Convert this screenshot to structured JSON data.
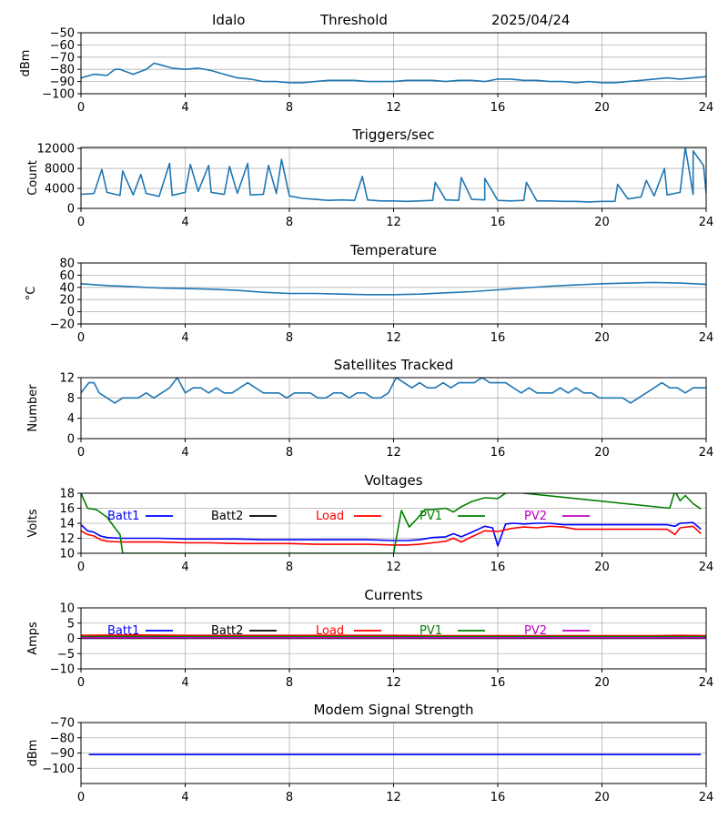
{
  "header": {
    "station": "Idalo",
    "mode": "Threshold",
    "date": "2025/04/24"
  },
  "x_ticks": [
    "0",
    "4",
    "8",
    "12",
    "16",
    "20",
    "24"
  ],
  "chart_data": [
    {
      "type": "line",
      "title": "",
      "ylabel": "dBm",
      "xlim": [
        0,
        24
      ],
      "ylim": [
        -100,
        -50
      ],
      "yticks": [
        "-50",
        "-60",
        "-70",
        "-80",
        "-90",
        "-100"
      ],
      "grid": true,
      "series": [
        {
          "color": "#1f77b4",
          "x": [
            0,
            0.5,
            1,
            1.3,
            1.5,
            2,
            2.5,
            2.8,
            3,
            3.5,
            4,
            4.5,
            5,
            5.5,
            6,
            6.5,
            7,
            7.5,
            8,
            8.5,
            9,
            9.5,
            10,
            10.5,
            11,
            11.5,
            12,
            12.5,
            13,
            13.5,
            14,
            14.5,
            15,
            15.5,
            16,
            16.5,
            17,
            17.5,
            18,
            18.5,
            19,
            19.5,
            20,
            20.5,
            21,
            21.5,
            22,
            22.5,
            23,
            23.5,
            24
          ],
          "y": [
            -87,
            -84,
            -85,
            -80,
            -80,
            -84,
            -80,
            -75,
            -76,
            -79,
            -80,
            -79,
            -81,
            -84,
            -87,
            -88,
            -90,
            -90,
            -91,
            -91,
            -90,
            -89,
            -89,
            -89,
            -90,
            -90,
            -90,
            -89,
            -89,
            -89,
            -90,
            -89,
            -89,
            -90,
            -88,
            -88,
            -89,
            -89,
            -90,
            -90,
            -91,
            -90,
            -91,
            -91,
            -90,
            -89,
            -88,
            -87,
            -88,
            -87,
            -86
          ]
        }
      ]
    },
    {
      "type": "line",
      "title": "Triggers/sec",
      "ylabel": "Count",
      "xlim": [
        0,
        24
      ],
      "ylim": [
        0,
        12200
      ],
      "yticks": [
        "0",
        "4000",
        "8000",
        "12000"
      ],
      "grid": true,
      "series": [
        {
          "color": "#1f77b4",
          "x": [
            0,
            0.5,
            1,
            1.5,
            2,
            2.5,
            3,
            3.5,
            4,
            4.5,
            5,
            5.5,
            6,
            6.5,
            7,
            7.5,
            8,
            8.5,
            9,
            9.5,
            10,
            10.5,
            11,
            11.5,
            12,
            12.5,
            13,
            13.5,
            14,
            14.5,
            15,
            15.5,
            16,
            16.5,
            17,
            17.5,
            18,
            18.5,
            19,
            19.5,
            20,
            20.5,
            21,
            21.5,
            22,
            22.5,
            23,
            23.5,
            24
          ],
          "y": [
            2800,
            3000,
            3200,
            2600,
            2700,
            3000,
            2400,
            2600,
            3200,
            3400,
            3200,
            2800,
            3000,
            2700,
            2800,
            3000,
            2500,
            2000,
            1800,
            1600,
            1700,
            1600,
            1700,
            1500,
            1500,
            1400,
            1500,
            1600,
            1700,
            1600,
            1800,
            1700,
            1600,
            1500,
            1600,
            1500,
            1500,
            1400,
            1400,
            1300,
            1400,
            1400,
            1900,
            2300,
            2500,
            2700,
            3200,
            2800,
            3000
          ],
          "spikes_x": [
            0.8,
            1.6,
            2.3,
            3.4,
            4.2,
            4.9,
            5.7,
            6.4,
            7.2,
            7.7,
            10.8,
            13.6,
            14.6,
            15.5,
            17.1,
            20.6,
            21.7,
            22.4,
            23.2,
            23.5,
            23.9
          ],
          "spikes_y": [
            7800,
            7500,
            6800,
            9000,
            8800,
            8600,
            8400,
            9000,
            8600,
            9800,
            6400,
            5200,
            6200,
            6000,
            5200,
            4800,
            5600,
            8000,
            12200,
            11500,
            8600
          ]
        }
      ]
    },
    {
      "type": "line",
      "title": "Temperature",
      "ylabel": "°C",
      "xlim": [
        0,
        24
      ],
      "ylim": [
        -20,
        80
      ],
      "yticks": [
        "80",
        "60",
        "40",
        "20",
        "0",
        "-20"
      ],
      "grid": true,
      "series": [
        {
          "color": "#1f77b4",
          "x": [
            0,
            1,
            2,
            3,
            4,
            5,
            6,
            7,
            8,
            9,
            10,
            11,
            12,
            13,
            14,
            15,
            16,
            17,
            18,
            19,
            20,
            21,
            22,
            23,
            24
          ],
          "y": [
            46,
            43,
            41,
            39,
            38,
            37,
            35,
            32,
            30,
            30,
            29,
            28,
            28,
            29,
            31,
            33,
            36,
            39,
            42,
            44,
            46,
            47,
            48,
            47,
            45
          ]
        }
      ]
    },
    {
      "type": "line",
      "title": "Satellites Tracked",
      "ylabel": "Number",
      "xlim": [
        0,
        24
      ],
      "ylim": [
        0,
        12
      ],
      "yticks": [
        "0",
        "4",
        "8",
        "12"
      ],
      "grid": true,
      "series": [
        {
          "color": "#1f77b4",
          "x": [
            0,
            0.3,
            0.5,
            0.7,
            1,
            1.3,
            1.6,
            1.9,
            2.2,
            2.5,
            2.8,
            3.1,
            3.4,
            3.7,
            4,
            4.3,
            4.6,
            4.9,
            5.2,
            5.5,
            5.8,
            6.1,
            6.4,
            6.7,
            7,
            7.3,
            7.6,
            7.9,
            8.2,
            8.5,
            8.8,
            9.1,
            9.4,
            9.7,
            10,
            10.3,
            10.6,
            10.9,
            11.2,
            11.5,
            11.8,
            12.1,
            12.4,
            12.7,
            13,
            13.3,
            13.6,
            13.9,
            14.2,
            14.5,
            14.8,
            15.1,
            15.4,
            15.7,
            16,
            16.3,
            16.6,
            16.9,
            17.2,
            17.5,
            17.8,
            18.1,
            18.4,
            18.7,
            19,
            19.3,
            19.6,
            19.9,
            20.2,
            20.5,
            20.8,
            21.1,
            21.4,
            21.7,
            22,
            22.3,
            22.6,
            22.9,
            23.2,
            23.5,
            23.8,
            24
          ],
          "y": [
            9,
            11,
            11,
            9,
            8,
            7,
            8,
            8,
            8,
            9,
            8,
            9,
            10,
            12,
            9,
            10,
            10,
            9,
            10,
            9,
            9,
            10,
            11,
            10,
            9,
            9,
            9,
            8,
            9,
            9,
            9,
            8,
            8,
            9,
            9,
            8,
            9,
            9,
            8,
            8,
            9,
            12,
            11,
            10,
            11,
            10,
            10,
            11,
            10,
            11,
            11,
            11,
            12,
            11,
            11,
            11,
            10,
            9,
            10,
            9,
            9,
            9,
            10,
            9,
            10,
            9,
            9,
            8,
            8,
            8,
            8,
            7,
            8,
            9,
            10,
            11,
            10,
            10,
            9,
            10,
            10,
            10
          ]
        }
      ]
    },
    {
      "type": "line",
      "title": "Voltages",
      "ylabel": "Volts",
      "xlim": [
        0,
        24
      ],
      "ylim": [
        10,
        18
      ],
      "yticks": [
        "10",
        "12",
        "14",
        "16",
        "18"
      ],
      "grid": true,
      "legend": [
        "Batt1",
        "Batt2",
        "Load",
        "PV1",
        "PV2"
      ],
      "series": [
        {
          "name": "Batt1",
          "color": "#0000ff",
          "x": [
            0,
            0.25,
            0.5,
            0.75,
            1,
            1.5,
            2,
            3,
            4,
            5,
            6,
            7,
            8,
            9,
            10,
            11,
            12,
            12.5,
            13,
            13.5,
            14,
            14.3,
            14.6,
            15,
            15.5,
            15.8,
            16,
            16.3,
            16.6,
            17,
            17.5,
            18,
            18.5,
            19,
            20,
            21,
            22,
            22.5,
            22.8,
            23,
            23.5,
            23.8
          ],
          "y": [
            13.8,
            13.0,
            12.8,
            12.3,
            12.1,
            12.0,
            12.0,
            12.0,
            11.9,
            11.9,
            11.9,
            11.8,
            11.8,
            11.8,
            11.8,
            11.8,
            11.7,
            11.7,
            11.8,
            12.1,
            12.2,
            12.6,
            12.2,
            12.8,
            13.6,
            13.4,
            11.0,
            13.9,
            14.0,
            13.9,
            14.0,
            14.0,
            13.8,
            13.8,
            13.8,
            13.8,
            13.8,
            13.8,
            13.6,
            14.0,
            14.1,
            13.2
          ]
        },
        {
          "name": "Batt2",
          "color": "#000000",
          "x": [],
          "y": []
        },
        {
          "name": "Load",
          "color": "#ff0000",
          "x": [
            0,
            0.25,
            0.5,
            0.75,
            1,
            1.5,
            2,
            3,
            4,
            5,
            6,
            7,
            8,
            9,
            10,
            11,
            12,
            12.5,
            13,
            13.5,
            14,
            14.3,
            14.6,
            15,
            15.5,
            16,
            16.5,
            17,
            17.5,
            18,
            18.5,
            19,
            20,
            21,
            22,
            22.5,
            22.8,
            23,
            23.5,
            23.8
          ],
          "y": [
            13.0,
            12.5,
            12.3,
            11.8,
            11.6,
            11.5,
            11.5,
            11.5,
            11.4,
            11.4,
            11.3,
            11.3,
            11.3,
            11.2,
            11.2,
            11.2,
            11.1,
            11.1,
            11.2,
            11.4,
            11.6,
            12.0,
            11.5,
            12.2,
            13.0,
            12.9,
            13.3,
            13.5,
            13.4,
            13.6,
            13.5,
            13.2,
            13.2,
            13.2,
            13.2,
            13.2,
            12.5,
            13.4,
            13.6,
            12.6
          ]
        },
        {
          "name": "PV1",
          "color": "#008000",
          "x": [
            0,
            0.25,
            0.6,
            1.0,
            1.3,
            1.5,
            1.6,
            12.0,
            12.3,
            12.6,
            12.9,
            13.2,
            13.5,
            14.0,
            14.3,
            14.6,
            15.0,
            15.5,
            16.0,
            16.3,
            16.6,
            17.0,
            22.6,
            22.8,
            23.0,
            23.2,
            23.5,
            23.8
          ],
          "y": [
            18.0,
            16.0,
            15.8,
            14.8,
            13.4,
            12.5,
            10.0,
            10.0,
            15.7,
            13.5,
            14.6,
            15.8,
            15.8,
            16.0,
            15.5,
            16.2,
            16.9,
            17.4,
            17.3,
            18.0,
            18.2,
            18.0,
            16.0,
            18.3,
            17.0,
            17.7,
            16.6,
            15.9
          ]
        },
        {
          "name": "PV2",
          "color": "#bf00bf",
          "x": [],
          "y": []
        }
      ]
    },
    {
      "type": "line",
      "title": "Currents",
      "ylabel": "Amps",
      "xlim": [
        0,
        24
      ],
      "ylim": [
        -10,
        10
      ],
      "yticks": [
        "10",
        "5",
        "0",
        "-5",
        "-10"
      ],
      "grid": true,
      "legend": [
        "Batt1",
        "Batt2",
        "Load",
        "PV1",
        "PV2"
      ],
      "series": [
        {
          "name": "Batt1",
          "color": "#0000ff",
          "x": [
            0,
            24
          ],
          "y": [
            0.3,
            0.3
          ]
        },
        {
          "name": "Batt2",
          "color": "#000000",
          "x": [
            0,
            24
          ],
          "y": [
            0.0,
            0.0
          ]
        },
        {
          "name": "Load",
          "color": "#ff0000",
          "x": [
            0,
            2,
            4,
            6,
            8,
            10,
            12,
            14,
            16,
            18,
            20,
            22,
            23,
            24
          ],
          "y": [
            0.9,
            1.0,
            0.9,
            0.9,
            0.9,
            0.9,
            0.9,
            0.8,
            0.8,
            0.8,
            0.8,
            0.8,
            0.9,
            0.8
          ]
        },
        {
          "name": "PV1",
          "color": "#008000",
          "x": [
            0,
            24
          ],
          "y": [
            0.6,
            0.6
          ]
        },
        {
          "name": "PV2",
          "color": "#bf00bf",
          "x": [
            0,
            24
          ],
          "y": [
            0.2,
            0.2
          ]
        }
      ]
    },
    {
      "type": "line",
      "title": "Modem Signal Strength",
      "ylabel": "dBm",
      "xlim": [
        0,
        24
      ],
      "ylim": [
        -110,
        -70
      ],
      "yticks": [
        "-70",
        "-80",
        "-90",
        "-100"
      ],
      "grid": true,
      "series": [
        {
          "color": "#0000ff",
          "x": [
            0.3,
            23.8
          ],
          "y": [
            -91,
            -91
          ]
        }
      ]
    }
  ]
}
